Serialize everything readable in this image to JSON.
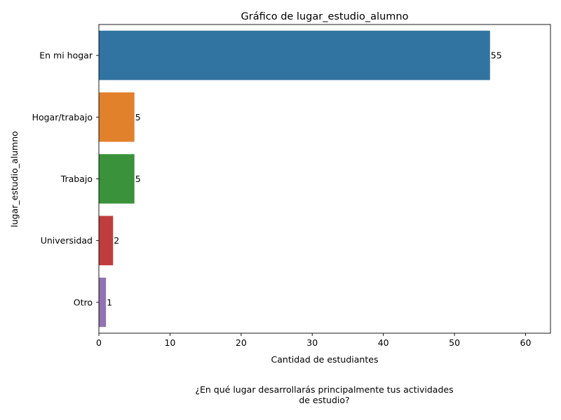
{
  "chart_data": {
    "type": "bar",
    "orientation": "horizontal",
    "title": "Gráfico de lugar_estudio_alumno",
    "xlabel": "Cantidad de estudiantes",
    "ylabel": "lugar_estudio_alumno",
    "categories": [
      "En mi hogar",
      "Hogar/trabajo",
      "Trabajo",
      "Universidad",
      "Otro"
    ],
    "values": [
      55,
      5,
      5,
      2,
      1
    ],
    "data_labels": [
      "55",
      "5",
      "5",
      "2",
      "1"
    ],
    "colors": [
      "#3274a1",
      "#e1812c",
      "#3a923a",
      "#c03d3e",
      "#9372b2"
    ],
    "xlim": [
      0,
      63.5
    ],
    "xticks": [
      "0",
      "10",
      "20",
      "30",
      "40",
      "50",
      "60"
    ],
    "grid": false
  },
  "caption": {
    "line1": "¿En qué lugar desarrollarás principalmente tus actividades",
    "line2": "de estudio?"
  }
}
